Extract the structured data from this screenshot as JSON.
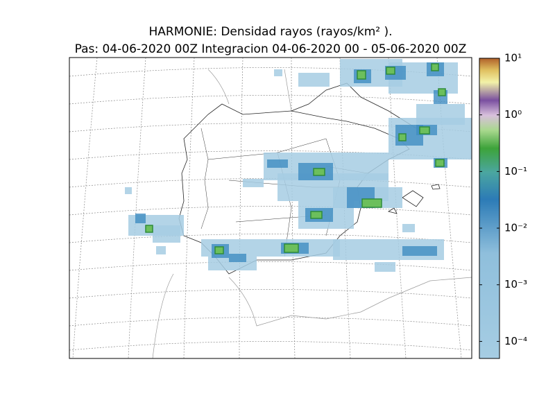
{
  "chart_data": {
    "type": "map",
    "title": "HARMONIE: Densidad rayos  (rayos/km² ).",
    "subtitle": "Pas: 04-06-2020 00Z Integracion 04-06-2020 00 - 05-06-2020 00Z",
    "colorbar": {
      "log_scale": true,
      "clim": [
        5e-05,
        10
      ],
      "ticks": [
        {
          "value": 10,
          "label": "10¹"
        },
        {
          "value": 1,
          "label": "10⁰"
        },
        {
          "value": 0.1,
          "label": "10⁻¹"
        },
        {
          "value": 0.01,
          "label": "10⁻²"
        },
        {
          "value": 0.001,
          "label": "10⁻³"
        },
        {
          "value": 0.0001,
          "label": "10⁻⁴"
        }
      ]
    }
  }
}
